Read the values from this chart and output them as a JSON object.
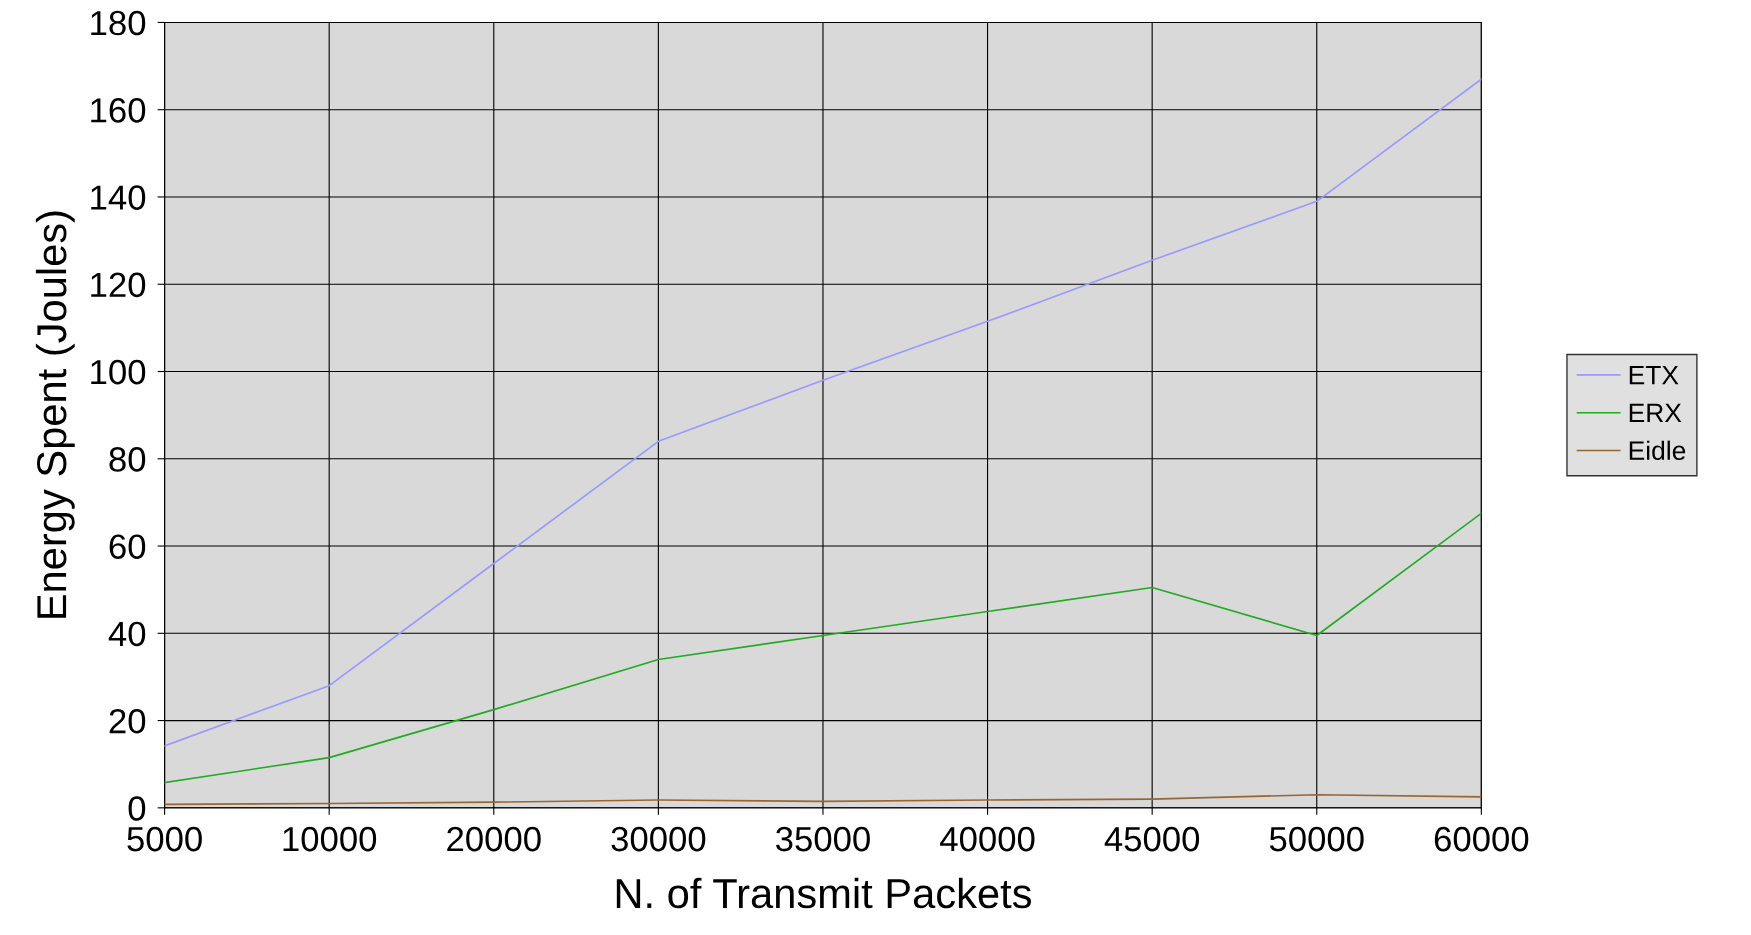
{
  "chart_data": {
    "type": "line",
    "xlabel": "N. of Transmit Packets",
    "ylabel": "Energy Spent (Joules)",
    "categories": [
      "5000",
      "10000",
      "20000",
      "30000",
      "35000",
      "40000",
      "45000",
      "50000",
      "60000"
    ],
    "series": [
      {
        "name": "ETX",
        "color": "#9999ff",
        "values": [
          14.2,
          28,
          56,
          84,
          98,
          111.5,
          125.5,
          139,
          167
        ]
      },
      {
        "name": "ERX",
        "color": "#22aa22",
        "values": [
          5.8,
          11.5,
          22.5,
          34,
          39.5,
          45,
          50.5,
          39.5,
          67.5
        ]
      },
      {
        "name": "Eidle",
        "color": "#996633",
        "values": [
          0.8,
          1,
          1.3,
          1.8,
          1.5,
          1.8,
          2,
          3,
          2.5
        ]
      }
    ],
    "ylim": [
      0,
      180
    ],
    "yticks": [
      0,
      20,
      40,
      60,
      80,
      100,
      120,
      140,
      160,
      180
    ],
    "grid": true,
    "legend": "right",
    "marker": "none",
    "line_style": "solid"
  }
}
